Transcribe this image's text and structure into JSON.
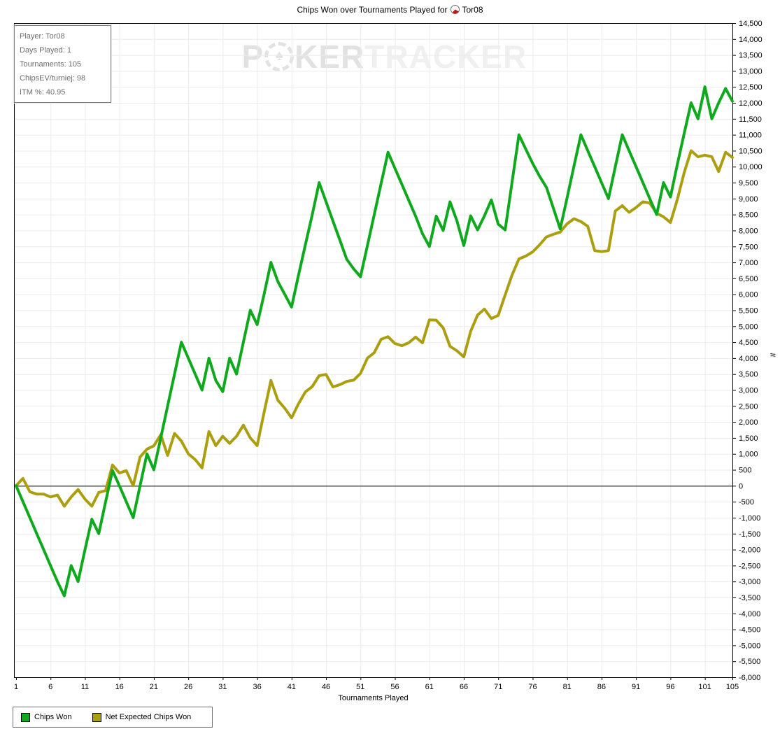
{
  "window": {
    "title": "Chips Won over Tournaments Played for Tor08"
  },
  "header": {
    "title_prefix": "Chips Won over Tournaments Played for",
    "title_player": "Tor08",
    "title_icon": "pokertracker-site-icon"
  },
  "watermark": {
    "part1": "P",
    "chip_glyph": "♠",
    "part2": "KER",
    "part3": "TRACKER"
  },
  "info_box": {
    "rows": [
      "Player: Tor08",
      "Days Played: 1",
      "Tournaments: 105",
      "ChipsEV/turniej: 98",
      "ITM %: 40.95"
    ]
  },
  "legend": {
    "items": [
      {
        "label": "Chips Won",
        "color": "#0fa91e"
      },
      {
        "label": "Net Expected Chips Won",
        "color": "#ab9e0f"
      }
    ],
    "position": "bottom-left"
  },
  "chart_data": {
    "type": "line",
    "title": "Chips Won over Tournaments Played for Tor08",
    "xlabel": "Tournaments Played",
    "ylabel": "#",
    "xlim": [
      1,
      105
    ],
    "ylim": [
      -6000,
      14500
    ],
    "x_ticks": [
      1,
      6,
      11,
      16,
      21,
      26,
      31,
      36,
      41,
      46,
      51,
      56,
      61,
      66,
      71,
      76,
      81,
      86,
      91,
      96,
      101,
      105
    ],
    "y_tick_interval": 500,
    "grid": true,
    "grid_color": "#ebebeb",
    "axis_color": "#000000",
    "zero_line": true,
    "legend_position": "bottom-left",
    "x_note": "x values are tournament numbers 1..105 (index+1)",
    "series": [
      {
        "name": "Net Expected Chips Won",
        "color": "#ab9e0f",
        "values": [
          0,
          230,
          -190,
          -260,
          -260,
          -350,
          -290,
          -640,
          -350,
          -120,
          -420,
          -640,
          -210,
          -150,
          650,
          400,
          475,
          0,
          900,
          1150,
          1250,
          1600,
          950,
          1640,
          1400,
          1000,
          820,
          560,
          1700,
          1260,
          1550,
          1330,
          1550,
          1900,
          1500,
          1260,
          2300,
          3300,
          2680,
          2430,
          2130,
          2570,
          2940,
          3110,
          3450,
          3490,
          3100,
          3170,
          3270,
          3310,
          3520,
          4000,
          4170,
          4590,
          4670,
          4460,
          4390,
          4480,
          4660,
          4480,
          5200,
          5190,
          4950,
          4370,
          4230,
          4040,
          4840,
          5350,
          5540,
          5240,
          5340,
          5980,
          6600,
          7110,
          7200,
          7330,
          7550,
          7800,
          7880,
          7950,
          8210,
          8370,
          8280,
          8130,
          7370,
          7340,
          7370,
          8610,
          8780,
          8570,
          8720,
          8900,
          8860,
          8540,
          8430,
          8250,
          8970,
          9820,
          10500,
          10310,
          10360,
          10310,
          9850,
          10450,
          10290
        ]
      },
      {
        "name": "Chips Won",
        "color": "#0fa91e",
        "values": [
          0,
          -500,
          -1000,
          -1500,
          -2000,
          -2500,
          -3000,
          -3450,
          -2500,
          -3000,
          -2000,
          -1050,
          -1500,
          -500,
          480,
          0,
          -500,
          -1000,
          0,
          1000,
          500,
          1500,
          2500,
          3500,
          4500,
          4000,
          3500,
          3000,
          4000,
          3300,
          2950,
          4000,
          3500,
          4500,
          5500,
          5050,
          6000,
          7000,
          6400,
          6000,
          5600,
          6600,
          7550,
          8500,
          9500,
          8900,
          8300,
          7700,
          7100,
          6800,
          6550,
          7525,
          8500,
          9475,
          10450,
          9950,
          9450,
          8950,
          8450,
          7900,
          7500,
          8450,
          8000,
          8900,
          8300,
          7530,
          8460,
          8020,
          8460,
          8960,
          8200,
          8020,
          9500,
          11000,
          10550,
          10100,
          9700,
          9350,
          8700,
          8050,
          9030,
          10020,
          11000,
          10500,
          10000,
          9500,
          9000,
          10000,
          11000,
          10500,
          10000,
          9500,
          9000,
          8500,
          9500,
          9050,
          10070,
          11050,
          12000,
          11500,
          12500,
          11500,
          12000,
          12450,
          12050
        ]
      }
    ]
  }
}
